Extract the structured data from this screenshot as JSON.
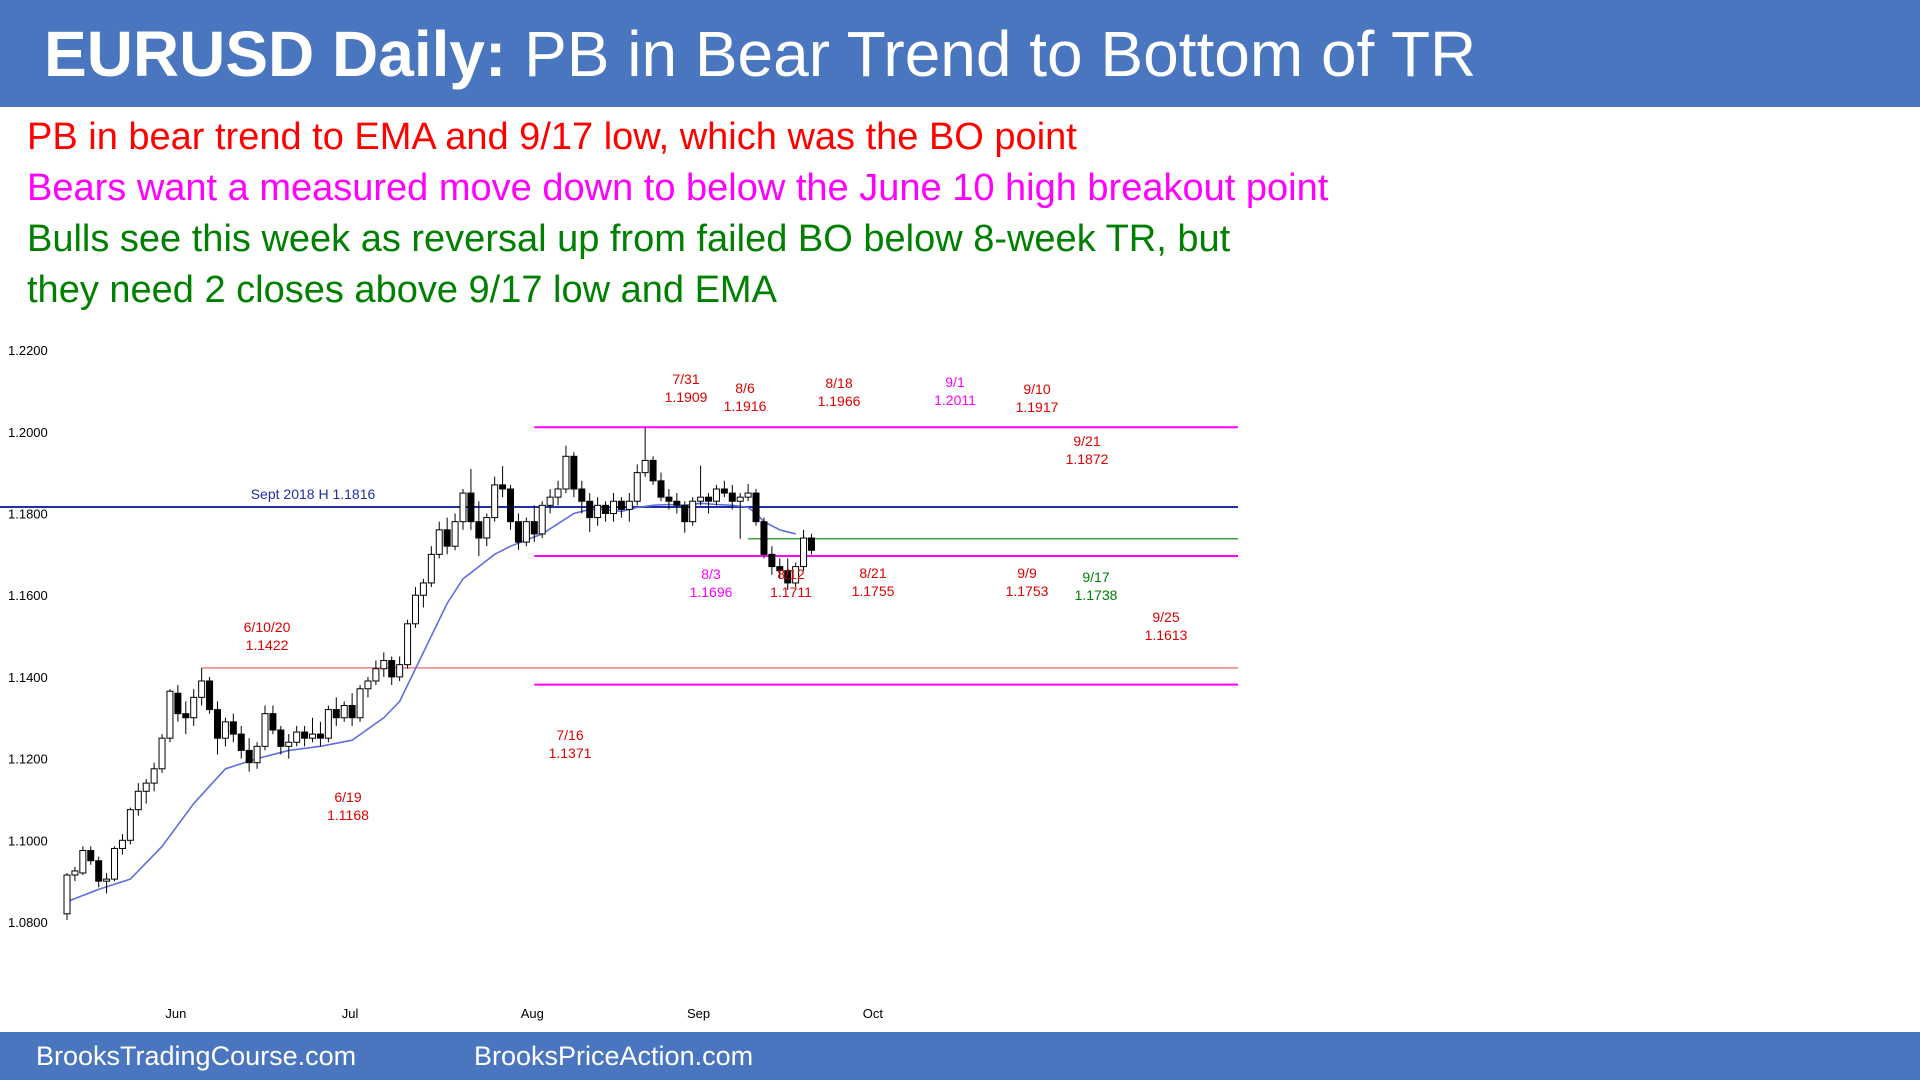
{
  "header": {
    "title_bold": "EURUSD Daily:",
    "title_rest": " PB in Bear Trend to Bottom of TR"
  },
  "notes": [
    {
      "text": "PB in bear trend to EMA and 9/17 low, which was the BO point",
      "color": "#ff0000"
    },
    {
      "text": "Bears want a measured move down to below the June 10 high breakout point",
      "color": "#ff00ff"
    },
    {
      "text": "Bulls see this week as reversal up from failed BO below 8-week TR, but",
      "color": "#008000"
    },
    {
      "text": "they need 2 closes above 9/17 low and EMA",
      "color": "#008000"
    }
  ],
  "footer": {
    "left": "BrooksTradingCourse.com",
    "right": "BrooksPriceAction.com"
  },
  "colors": {
    "header_bg": "#4a76c0",
    "ema": "#5f6fe0",
    "resistance": "#1f2fa8",
    "range_lines": "#ff00ff",
    "breakout": "#f08080",
    "label_red": "#e00000",
    "label_magenta": "#ff00ff",
    "label_green": "#008000"
  },
  "chart_data": {
    "type": "candlestick",
    "y_ticks": [
      "1.0800",
      "1.1000",
      "1.1200",
      "1.1400",
      "1.1600",
      "1.1800",
      "1.2000",
      "1.2200"
    ],
    "ylim": [
      1.075,
      1.225
    ],
    "x_ticks": [
      {
        "label": "Jun",
        "index": 14
      },
      {
        "label": "Jul",
        "index": 36
      },
      {
        "label": "Aug",
        "index": 59
      },
      {
        "label": "Sep",
        "index": 80
      },
      {
        "label": "Oct",
        "index": 102
      }
    ],
    "candles": [
      [
        1.082,
        1.092,
        1.0805,
        1.0915
      ],
      [
        1.0915,
        1.0935,
        1.09,
        1.0925
      ],
      [
        1.092,
        1.0985,
        1.0915,
        1.0975
      ],
      [
        1.0975,
        1.0985,
        1.094,
        1.095
      ],
      [
        1.095,
        1.096,
        1.0885,
        1.09
      ],
      [
        1.09,
        1.092,
        1.087,
        1.0905
      ],
      [
        1.0905,
        1.0985,
        1.09,
        1.098
      ],
      [
        1.098,
        1.1015,
        1.0965,
        1.1
      ],
      [
        1.1,
        1.108,
        1.099,
        1.1075
      ],
      [
        1.1075,
        1.114,
        1.106,
        1.112
      ],
      [
        1.112,
        1.115,
        1.109,
        1.114
      ],
      [
        1.114,
        1.119,
        1.112,
        1.1175
      ],
      [
        1.1175,
        1.126,
        1.1165,
        1.125
      ],
      [
        1.125,
        1.137,
        1.124,
        1.1365
      ],
      [
        1.136,
        1.138,
        1.129,
        1.131
      ],
      [
        1.131,
        1.134,
        1.126,
        1.13
      ],
      [
        1.13,
        1.137,
        1.128,
        1.135
      ],
      [
        1.135,
        1.1422,
        1.133,
        1.139
      ],
      [
        1.139,
        1.14,
        1.131,
        1.132
      ],
      [
        1.132,
        1.134,
        1.121,
        1.125
      ],
      [
        1.125,
        1.13,
        1.123,
        1.129
      ],
      [
        1.129,
        1.131,
        1.124,
        1.126
      ],
      [
        1.126,
        1.128,
        1.12,
        1.122
      ],
      [
        1.122,
        1.125,
        1.1168,
        1.119
      ],
      [
        1.119,
        1.124,
        1.1175,
        1.123
      ],
      [
        1.123,
        1.133,
        1.122,
        1.131
      ],
      [
        1.131,
        1.133,
        1.126,
        1.127
      ],
      [
        1.127,
        1.128,
        1.121,
        1.123
      ],
      [
        1.123,
        1.126,
        1.12,
        1.124
      ],
      [
        1.124,
        1.128,
        1.123,
        1.1265
      ],
      [
        1.1265,
        1.128,
        1.123,
        1.125
      ],
      [
        1.125,
        1.13,
        1.124,
        1.126
      ],
      [
        1.126,
        1.129,
        1.123,
        1.125
      ],
      [
        1.125,
        1.133,
        1.124,
        1.132
      ],
      [
        1.132,
        1.135,
        1.128,
        1.13
      ],
      [
        1.13,
        1.134,
        1.129,
        1.133
      ],
      [
        1.133,
        1.136,
        1.128,
        1.13
      ],
      [
        1.13,
        1.138,
        1.129,
        1.1371
      ],
      [
        1.1371,
        1.14,
        1.135,
        1.139
      ],
      [
        1.139,
        1.144,
        1.138,
        1.142
      ],
      [
        1.142,
        1.146,
        1.14,
        1.144
      ],
      [
        1.144,
        1.145,
        1.138,
        1.14
      ],
      [
        1.14,
        1.145,
        1.139,
        1.143
      ],
      [
        1.143,
        1.154,
        1.142,
        1.153
      ],
      [
        1.153,
        1.162,
        1.152,
        1.16
      ],
      [
        1.16,
        1.164,
        1.157,
        1.163
      ],
      [
        1.163,
        1.172,
        1.162,
        1.17
      ],
      [
        1.17,
        1.178,
        1.169,
        1.176
      ],
      [
        1.176,
        1.179,
        1.17,
        1.172
      ],
      [
        1.172,
        1.18,
        1.171,
        1.178
      ],
      [
        1.178,
        1.186,
        1.176,
        1.185
      ],
      [
        1.185,
        1.1909,
        1.176,
        1.178
      ],
      [
        1.178,
        1.183,
        1.1696,
        1.174
      ],
      [
        1.174,
        1.18,
        1.172,
        1.179
      ],
      [
        1.179,
        1.189,
        1.178,
        1.187
      ],
      [
        1.187,
        1.1916,
        1.184,
        1.186
      ],
      [
        1.186,
        1.187,
        1.176,
        1.178
      ],
      [
        1.178,
        1.18,
        1.1711,
        1.173
      ],
      [
        1.173,
        1.179,
        1.172,
        1.178
      ],
      [
        1.178,
        1.182,
        1.173,
        1.175
      ],
      [
        1.175,
        1.183,
        1.174,
        1.182
      ],
      [
        1.182,
        1.186,
        1.18,
        1.184
      ],
      [
        1.184,
        1.188,
        1.182,
        1.186
      ],
      [
        1.186,
        1.1966,
        1.185,
        1.194
      ],
      [
        1.194,
        1.195,
        1.184,
        1.186
      ],
      [
        1.186,
        1.188,
        1.18,
        1.183
      ],
      [
        1.183,
        1.185,
        1.1755,
        1.179
      ],
      [
        1.179,
        1.184,
        1.177,
        1.182
      ],
      [
        1.182,
        1.183,
        1.178,
        1.18
      ],
      [
        1.18,
        1.185,
        1.178,
        1.183
      ],
      [
        1.183,
        1.184,
        1.179,
        1.181
      ],
      [
        1.181,
        1.185,
        1.178,
        1.183
      ],
      [
        1.183,
        1.192,
        1.182,
        1.19
      ],
      [
        1.19,
        1.2011,
        1.189,
        1.193
      ],
      [
        1.193,
        1.194,
        1.187,
        1.188
      ],
      [
        1.188,
        1.19,
        1.183,
        1.184
      ],
      [
        1.184,
        1.186,
        1.181,
        1.183
      ],
      [
        1.183,
        1.185,
        1.18,
        1.182
      ],
      [
        1.182,
        1.183,
        1.1753,
        1.178
      ],
      [
        1.178,
        1.184,
        1.177,
        1.183
      ],
      [
        1.183,
        1.1917,
        1.182,
        1.184
      ],
      [
        1.184,
        1.185,
        1.18,
        1.183
      ],
      [
        1.183,
        1.187,
        1.182,
        1.186
      ],
      [
        1.186,
        1.188,
        1.184,
        1.185
      ],
      [
        1.185,
        1.187,
        1.181,
        1.183
      ],
      [
        1.183,
        1.185,
        1.1738,
        1.184
      ],
      [
        1.184,
        1.1872,
        1.183,
        1.185
      ],
      [
        1.185,
        1.186,
        1.177,
        1.178
      ],
      [
        1.178,
        1.179,
        1.169,
        1.17
      ],
      [
        1.17,
        1.172,
        1.165,
        1.167
      ],
      [
        1.167,
        1.169,
        1.164,
        1.166
      ],
      [
        1.166,
        1.169,
        1.1613,
        1.163
      ],
      [
        1.163,
        1.168,
        1.162,
        1.167
      ],
      [
        1.167,
        1.176,
        1.166,
        1.174
      ],
      [
        1.174,
        1.175,
        1.17,
        1.171
      ]
    ],
    "ema": [
      [
        0,
        1.085
      ],
      [
        4,
        1.088
      ],
      [
        8,
        1.0905
      ],
      [
        12,
        1.0985
      ],
      [
        16,
        1.109
      ],
      [
        20,
        1.1175
      ],
      [
        24,
        1.12
      ],
      [
        28,
        1.122
      ],
      [
        32,
        1.123
      ],
      [
        36,
        1.1245
      ],
      [
        40,
        1.13
      ],
      [
        42,
        1.134
      ],
      [
        44,
        1.142
      ],
      [
        46,
        1.15
      ],
      [
        48,
        1.158
      ],
      [
        50,
        1.164
      ],
      [
        52,
        1.167
      ],
      [
        54,
        1.17
      ],
      [
        56,
        1.172
      ],
      [
        58,
        1.1735
      ],
      [
        60,
        1.175
      ],
      [
        62,
        1.1775
      ],
      [
        64,
        1.18
      ],
      [
        66,
        1.181
      ],
      [
        68,
        1.181
      ],
      [
        70,
        1.1805
      ],
      [
        72,
        1.1815
      ],
      [
        74,
        1.182
      ],
      [
        76,
        1.1822
      ],
      [
        78,
        1.182
      ],
      [
        80,
        1.1825
      ],
      [
        82,
        1.1822
      ],
      [
        84,
        1.182
      ],
      [
        86,
        1.1815
      ],
      [
        87,
        1.18
      ],
      [
        88,
        1.178
      ],
      [
        90,
        1.176
      ],
      [
        92,
        1.175
      ]
    ],
    "horizontal_lines": [
      {
        "name": "sept-2018-high",
        "value": 1.1816,
        "from": -3,
        "to": 102,
        "label": "Sept 2018 H 1.1816"
      },
      {
        "name": "range-top",
        "value": 1.2011,
        "from": 59,
        "to": 102
      },
      {
        "name": "range-bottom",
        "value": 1.1696,
        "from": 59,
        "to": 102
      },
      {
        "name": "bo-point-917",
        "value": 1.1738,
        "from": 86,
        "to": 102
      },
      {
        "name": "june-10-high",
        "value": 1.1422,
        "from": 17,
        "to": 102
      },
      {
        "name": "measured-move-target",
        "value": 1.1381,
        "from": 59,
        "to": 102
      }
    ],
    "annotations": [
      {
        "date": "6/10/20",
        "price": "1.1422",
        "color": "red"
      },
      {
        "date": "6/19",
        "price": "1.1168",
        "color": "red"
      },
      {
        "date": "7/16",
        "price": "1.1371",
        "color": "red"
      },
      {
        "date": "7/31",
        "price": "1.1909",
        "color": "red"
      },
      {
        "date": "8/6",
        "price": "1.1916",
        "color": "red"
      },
      {
        "date": "8/18",
        "price": "1.1966",
        "color": "red"
      },
      {
        "date": "9/1",
        "price": "1.2011",
        "color": "magenta"
      },
      {
        "date": "9/10",
        "price": "1.1917",
        "color": "red"
      },
      {
        "date": "9/21",
        "price": "1.1872",
        "color": "red"
      },
      {
        "date": "8/3",
        "price": "1.1696",
        "color": "magenta"
      },
      {
        "date": "8/12",
        "price": "1.1711",
        "color": "red"
      },
      {
        "date": "8/21",
        "price": "1.1755",
        "color": "red"
      },
      {
        "date": "9/9",
        "price": "1.1753",
        "color": "red"
      },
      {
        "date": "9/17",
        "price": "1.1738",
        "color": "green"
      },
      {
        "date": "9/25",
        "price": "1.1613",
        "color": "red"
      }
    ]
  }
}
